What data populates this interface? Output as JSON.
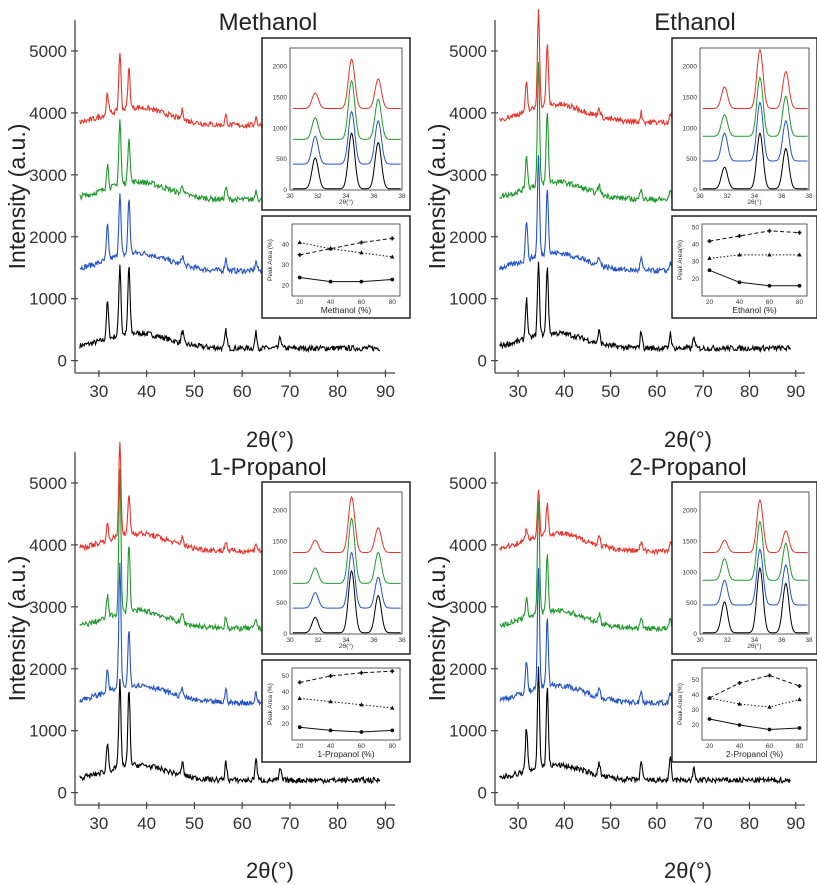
{
  "figure": {
    "ylabel": "Intensity (a.u.)",
    "xlabel": "2θ(°)",
    "curve_colors": [
      "#000000",
      "#2554c7",
      "#22992e",
      "#e8342a"
    ]
  },
  "chart_data": [
    {
      "type": "line",
      "title": "Methanol",
      "xlabel": "2θ(°)",
      "ylabel": "Intensity (a.u.)",
      "xlim": [
        25,
        92
      ],
      "ylim": [
        -200,
        5500
      ],
      "xticks": [
        30,
        40,
        50,
        60,
        70,
        80,
        90
      ],
      "yticks": [
        0,
        1000,
        2000,
        3000,
        4000,
        5000
      ],
      "series": [
        {
          "offset": 200,
          "peaks": [
            [
              31.8,
              600
            ],
            [
              34.4,
              1150
            ],
            [
              36.3,
              1100
            ],
            [
              47.5,
              200
            ],
            [
              56.6,
              280
            ],
            [
              62.9,
              250
            ],
            [
              68.0,
              180
            ]
          ]
        },
        {
          "offset": 1450,
          "peaks": [
            [
              31.8,
              550
            ],
            [
              34.4,
              1000
            ],
            [
              36.3,
              900
            ],
            [
              47.5,
              150
            ],
            [
              56.6,
              200
            ],
            [
              62.9,
              150
            ],
            [
              68.0,
              110
            ]
          ]
        },
        {
          "offset": 2600,
          "peaks": [
            [
              31.8,
              400
            ],
            [
              34.4,
              1050
            ],
            [
              36.3,
              750
            ],
            [
              47.5,
              150
            ],
            [
              56.6,
              200
            ],
            [
              62.9,
              150
            ],
            [
              68.0,
              110
            ]
          ]
        },
        {
          "offset": 3800,
          "peaks": [
            [
              31.8,
              350
            ],
            [
              34.4,
              950
            ],
            [
              36.3,
              650
            ],
            [
              47.5,
              150
            ],
            [
              56.6,
              150
            ],
            [
              62.9,
              130
            ],
            [
              68.0,
              100
            ]
          ]
        }
      ],
      "inset_xrd": {
        "xlabel": "2θ(°)",
        "xlim": [
          30,
          38
        ],
        "ylim": [
          0,
          2300
        ],
        "xticks": [
          30,
          32,
          34,
          36,
          38
        ],
        "yticks": [
          0,
          500,
          1000,
          1500,
          2000
        ],
        "offsets": [
          0,
          400,
          800,
          1300
        ],
        "peaks": [
          [
            500,
            900,
            750
          ],
          [
            450,
            850,
            700
          ],
          [
            350,
            950,
            650
          ],
          [
            250,
            800,
            480
          ]
        ]
      },
      "inset_area": {
        "xlabel": "Methanol (%)",
        "ylabel": "Peak Area (%)",
        "x": [
          20,
          40,
          60,
          80
        ],
        "xticks": [
          20,
          40,
          60,
          80
        ],
        "ylim": [
          15,
          50
        ],
        "yticks": [
          20,
          30,
          40
        ],
        "series": [
          {
            "style": "solid",
            "values": [
              24,
              22,
              22,
              23
            ]
          },
          {
            "style": "dotted",
            "values": [
              41,
              38,
              36,
              34
            ]
          },
          {
            "style": "dashed",
            "values": [
              35,
              38,
              41,
              43
            ]
          }
        ]
      }
    },
    {
      "type": "line",
      "title": "Ethanol",
      "xlabel": "2θ(°)",
      "ylabel": "Intensity (a.u.)",
      "xlim": [
        25,
        92
      ],
      "ylim": [
        -200,
        5500
      ],
      "xticks": [
        30,
        40,
        50,
        60,
        70,
        80,
        90
      ],
      "yticks": [
        0,
        1000,
        2000,
        3000,
        4000,
        5000
      ],
      "series": [
        {
          "offset": 200,
          "peaks": [
            [
              31.8,
              650
            ],
            [
              34.4,
              1150
            ],
            [
              36.3,
              1100
            ],
            [
              47.5,
              200
            ],
            [
              56.6,
              280
            ],
            [
              62.9,
              250
            ],
            [
              68.0,
              180
            ]
          ]
        },
        {
          "offset": 1450,
          "peaks": [
            [
              31.8,
              650
            ],
            [
              34.4,
              1600
            ],
            [
              36.3,
              1100
            ],
            [
              47.5,
              150
            ],
            [
              56.6,
              200
            ],
            [
              62.9,
              150
            ],
            [
              68.0,
              110
            ]
          ]
        },
        {
          "offset": 2600,
          "peaks": [
            [
              31.8,
              550
            ],
            [
              34.4,
              1950
            ],
            [
              36.3,
              1150
            ],
            [
              47.5,
              150
            ],
            [
              56.6,
              200
            ],
            [
              62.9,
              150
            ],
            [
              68.0,
              110
            ]
          ]
        },
        {
          "offset": 3850,
          "peaks": [
            [
              31.8,
              450
            ],
            [
              34.4,
              1600
            ],
            [
              36.3,
              1000
            ],
            [
              47.5,
              150
            ],
            [
              56.6,
              150
            ],
            [
              62.9,
              130
            ],
            [
              68.0,
              100
            ]
          ]
        }
      ],
      "inset_xrd": {
        "xlabel": "2θ(°)",
        "xlim": [
          30,
          38
        ],
        "ylim": [
          0,
          2300
        ],
        "xticks": [
          30,
          32,
          34,
          36,
          38
        ],
        "yticks": [
          0,
          500,
          1000,
          1500,
          2000
        ],
        "offsets": [
          0,
          450,
          850,
          1300
        ],
        "peaks": [
          [
            350,
            900,
            650
          ],
          [
            450,
            950,
            650
          ],
          [
            350,
            950,
            650
          ],
          [
            350,
            950,
            600
          ]
        ]
      },
      "inset_area": {
        "xlabel": "Ethanol (%)",
        "ylabel": "Peak Area(%)",
        "x": [
          20,
          40,
          60,
          80
        ],
        "xticks": [
          20,
          40,
          60,
          80
        ],
        "ylim": [
          10,
          52
        ],
        "yticks": [
          20,
          30,
          40,
          50
        ],
        "series": [
          {
            "style": "solid",
            "values": [
              25,
              18,
              16,
              16
            ]
          },
          {
            "style": "dotted",
            "values": [
              32,
              34,
              34,
              34
            ]
          },
          {
            "style": "dashed",
            "values": [
              42,
              45,
              48,
              47
            ]
          }
        ]
      }
    },
    {
      "type": "line",
      "title": "1-Propanol",
      "xlabel": "2θ(°)",
      "ylabel": "Intensity (a.u.)",
      "xlim": [
        25,
        92
      ],
      "ylim": [
        -200,
        5500
      ],
      "xticks": [
        30,
        40,
        50,
        60,
        70,
        80,
        90
      ],
      "yticks": [
        0,
        1000,
        2000,
        3000,
        4000,
        5000
      ],
      "series": [
        {
          "offset": 200,
          "peaks": [
            [
              31.8,
              450
            ],
            [
              34.4,
              1400
            ],
            [
              36.3,
              1250
            ],
            [
              47.5,
              200
            ],
            [
              56.6,
              280
            ],
            [
              62.9,
              350
            ],
            [
              68.0,
              180
            ]
          ]
        },
        {
          "offset": 1450,
          "peaks": [
            [
              31.8,
              350
            ],
            [
              34.4,
              2000
            ],
            [
              36.3,
              900
            ],
            [
              47.5,
              150
            ],
            [
              56.6,
              200
            ],
            [
              62.9,
              150
            ],
            [
              68.0,
              110
            ]
          ]
        },
        {
          "offset": 2650,
          "peaks": [
            [
              31.8,
              350
            ],
            [
              34.4,
              2300
            ],
            [
              36.3,
              1100
            ],
            [
              47.5,
              150
            ],
            [
              56.6,
              200
            ],
            [
              62.9,
              150
            ],
            [
              68.0,
              110
            ]
          ]
        },
        {
          "offset": 3900,
          "peaks": [
            [
              31.8,
              250
            ],
            [
              34.4,
              1550
            ],
            [
              36.3,
              650
            ],
            [
              47.5,
              150
            ],
            [
              56.6,
              150
            ],
            [
              62.9,
              130
            ],
            [
              68.0,
              100
            ]
          ]
        }
      ],
      "inset_xrd": {
        "xlabel": "2θ(°)",
        "xlim": [
          30,
          38
        ],
        "ylim": [
          0,
          2300
        ],
        "xticks": [
          30,
          32,
          34,
          36,
          38
        ],
        "yticks": [
          0,
          500,
          1000,
          1500,
          2000
        ],
        "offsets": [
          0,
          400,
          800,
          1300
        ],
        "peaks": [
          [
            250,
            1000,
            600
          ],
          [
            250,
            900,
            500
          ],
          [
            250,
            1050,
            500
          ],
          [
            200,
            900,
            400
          ]
        ]
      },
      "inset_area": {
        "xlabel": "1-Propanol (%)",
        "ylabel": "Peak Area (%)",
        "x": [
          20,
          40,
          60,
          80
        ],
        "xticks": [
          20,
          40,
          60,
          80
        ],
        "ylim": [
          10,
          55
        ],
        "yticks": [
          20,
          30,
          40,
          50
        ],
        "series": [
          {
            "style": "solid",
            "values": [
              18,
              16,
              15,
              16
            ]
          },
          {
            "style": "dotted",
            "values": [
              36,
              34,
              32,
              30
            ]
          },
          {
            "style": "dashed",
            "values": [
              46,
              50,
              52,
              53
            ]
          }
        ]
      }
    },
    {
      "type": "line",
      "title": "2-Propanol",
      "xlabel": "2θ(°)",
      "ylabel": "Intensity (a.u.)",
      "xlim": [
        25,
        92
      ],
      "ylim": [
        -200,
        5500
      ],
      "xticks": [
        30,
        40,
        50,
        60,
        70,
        80,
        90
      ],
      "yticks": [
        0,
        1000,
        2000,
        3000,
        4000,
        5000
      ],
      "series": [
        {
          "offset": 200,
          "peaks": [
            [
              31.8,
              700
            ],
            [
              34.4,
              1600
            ],
            [
              36.3,
              1250
            ],
            [
              47.5,
              200
            ],
            [
              56.6,
              300
            ],
            [
              62.9,
              350
            ],
            [
              68.0,
              180
            ]
          ]
        },
        {
          "offset": 1450,
          "peaks": [
            [
              31.8,
              500
            ],
            [
              34.4,
              1900
            ],
            [
              36.3,
              1100
            ],
            [
              47.5,
              150
            ],
            [
              56.6,
              200
            ],
            [
              62.9,
              150
            ],
            [
              68.0,
              110
            ]
          ]
        },
        {
          "offset": 2650,
          "peaks": [
            [
              31.8,
              350
            ],
            [
              34.4,
              1800
            ],
            [
              36.3,
              900
            ],
            [
              47.5,
              150
            ],
            [
              56.6,
              200
            ],
            [
              62.9,
              150
            ],
            [
              68.0,
              110
            ]
          ]
        },
        {
          "offset": 3900,
          "peaks": [
            [
              31.8,
              200
            ],
            [
              34.4,
              750
            ],
            [
              36.3,
              500
            ],
            [
              47.5,
              150
            ],
            [
              56.6,
              150
            ],
            [
              62.9,
              130
            ],
            [
              68.0,
              100
            ]
          ]
        }
      ],
      "inset_xrd": {
        "xlabel": "2θ(°)",
        "xlim": [
          30,
          38
        ],
        "ylim": [
          0,
          2300
        ],
        "xticks": [
          30,
          32,
          34,
          36,
          38
        ],
        "yticks": [
          0,
          500,
          1000,
          1500,
          2000
        ],
        "offsets": [
          0,
          450,
          850,
          1300
        ],
        "peaks": [
          [
            500,
            1050,
            800
          ],
          [
            400,
            900,
            650
          ],
          [
            350,
            950,
            600
          ],
          [
            200,
            850,
            350
          ]
        ]
      },
      "inset_area": {
        "xlabel": "2-Propanol (%)",
        "ylabel": "Peak Area (%)",
        "x": [
          20,
          40,
          60,
          80
        ],
        "xticks": [
          20,
          40,
          60,
          80
        ],
        "ylim": [
          10,
          58
        ],
        "yticks": [
          20,
          30,
          40,
          50
        ],
        "series": [
          {
            "style": "solid",
            "values": [
              24,
              20,
              17,
              18
            ]
          },
          {
            "style": "dotted",
            "values": [
              38,
              34,
              32,
              37
            ]
          },
          {
            "style": "dashed",
            "values": [
              38,
              48,
              53,
              46
            ]
          }
        ]
      }
    }
  ]
}
